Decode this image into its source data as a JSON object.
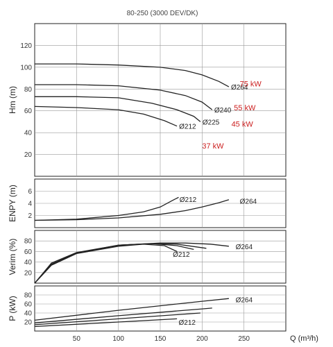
{
  "title": "80-250 (3000 DEV/DK)",
  "xlabel": "Q (m³/h)",
  "colors": {
    "axis": "#222222",
    "grid": "#999999",
    "curve": "#222222",
    "power": "#cc2222"
  },
  "chart_data": [
    {
      "type": "line",
      "id": "head",
      "ylabel": "Hm (m)",
      "xlim": [
        0,
        300
      ],
      "ylim": [
        0,
        140
      ],
      "xticks": [
        50,
        100,
        150,
        200,
        250
      ],
      "yticks": [
        20,
        40,
        60,
        80,
        100,
        120
      ],
      "grid": true,
      "series": [
        {
          "name": "Ø264",
          "x": [
            0,
            50,
            100,
            150,
            180,
            200,
            220,
            232
          ],
          "y": [
            103,
            103,
            102,
            100,
            97,
            93,
            87,
            82
          ]
        },
        {
          "name": "Ø240",
          "x": [
            0,
            50,
            100,
            150,
            180,
            200,
            212
          ],
          "y": [
            84,
            84,
            83,
            79,
            74,
            68,
            61
          ]
        },
        {
          "name": "Ø225",
          "x": [
            0,
            50,
            100,
            140,
            170,
            190,
            198
          ],
          "y": [
            73,
            73,
            72,
            67,
            61,
            55,
            50
          ]
        },
        {
          "name": "Ø212",
          "x": [
            0,
            50,
            100,
            130,
            155,
            170
          ],
          "y": [
            64,
            63,
            61,
            57,
            51,
            46
          ]
        }
      ],
      "annotations": [
        {
          "text": "75 kW",
          "x": 245,
          "y": 85
        },
        {
          "text": "55 kW",
          "x": 238,
          "y": 63
        },
        {
          "text": "45 kW",
          "x": 235,
          "y": 48
        },
        {
          "text": "37 kW",
          "x": 200,
          "y": 28
        }
      ]
    },
    {
      "type": "line",
      "id": "npsh",
      "ylabel": "ENPY (m)",
      "xlim": [
        0,
        300
      ],
      "ylim": [
        0,
        8
      ],
      "yticks": [
        2,
        4,
        6
      ],
      "grid": true,
      "series": [
        {
          "name": "Ø212",
          "x": [
            0,
            50,
            100,
            130,
            150,
            165,
            172
          ],
          "y": [
            1.2,
            1.4,
            2.0,
            2.6,
            3.4,
            4.5,
            5.0
          ]
        },
        {
          "name": "Ø264",
          "x": [
            0,
            50,
            100,
            150,
            180,
            200,
            220,
            232
          ],
          "y": [
            1.2,
            1.3,
            1.6,
            2.2,
            2.8,
            3.4,
            4.1,
            4.6
          ]
        }
      ],
      "labels": [
        {
          "text": "Ø212",
          "x": 173,
          "y": 4.7
        },
        {
          "text": "Ø264",
          "x": 245,
          "y": 4.4
        }
      ]
    },
    {
      "type": "line",
      "id": "efficiency",
      "ylabel": "Verim (%)",
      "xlim": [
        0,
        300
      ],
      "ylim": [
        0,
        100
      ],
      "yticks": [
        20,
        40,
        60,
        80
      ],
      "grid": true,
      "series": [
        {
          "name": "Ø264",
          "x": [
            0,
            20,
            50,
            100,
            150,
            180,
            210,
            232
          ],
          "y": [
            0,
            38,
            58,
            72,
            76,
            76,
            74,
            70
          ]
        },
        {
          "name": "Ø240",
          "x": [
            0,
            20,
            50,
            100,
            140,
            170,
            205
          ],
          "y": [
            0,
            36,
            57,
            72,
            75,
            74,
            66
          ]
        },
        {
          "name": "Ø225",
          "x": [
            0,
            20,
            50,
            100,
            140,
            170,
            190
          ],
          "y": [
            0,
            35,
            57,
            72,
            75,
            71,
            64
          ]
        },
        {
          "name": "Ø212",
          "x": [
            0,
            20,
            50,
            100,
            130,
            155,
            170
          ],
          "y": [
            0,
            34,
            56,
            70,
            74,
            71,
            60
          ]
        }
      ],
      "labels": [
        {
          "text": "Ø212",
          "x": 165,
          "y": 55
        },
        {
          "text": "Ø264",
          "x": 240,
          "y": 70
        }
      ]
    },
    {
      "type": "line",
      "id": "power",
      "ylabel": "P (kW)",
      "xlim": [
        0,
        300
      ],
      "ylim": [
        0,
        100
      ],
      "yticks": [
        20,
        40,
        60,
        80
      ],
      "grid": true,
      "series": [
        {
          "name": "Ø264",
          "x": [
            0,
            100,
            200,
            232
          ],
          "y": [
            24,
            46,
            66,
            72
          ]
        },
        {
          "name": "Ø240",
          "x": [
            0,
            100,
            200,
            212
          ],
          "y": [
            18,
            34,
            49,
            51
          ]
        },
        {
          "name": "Ø225",
          "x": [
            0,
            100,
            198
          ],
          "y": [
            14,
            27,
            40
          ]
        },
        {
          "name": "Ø212",
          "x": [
            0,
            100,
            170
          ],
          "y": [
            10,
            20,
            27
          ]
        }
      ],
      "labels": [
        {
          "text": "Ø264",
          "x": 240,
          "y": 70
        },
        {
          "text": "Ø212",
          "x": 172,
          "y": 20
        }
      ]
    }
  ]
}
